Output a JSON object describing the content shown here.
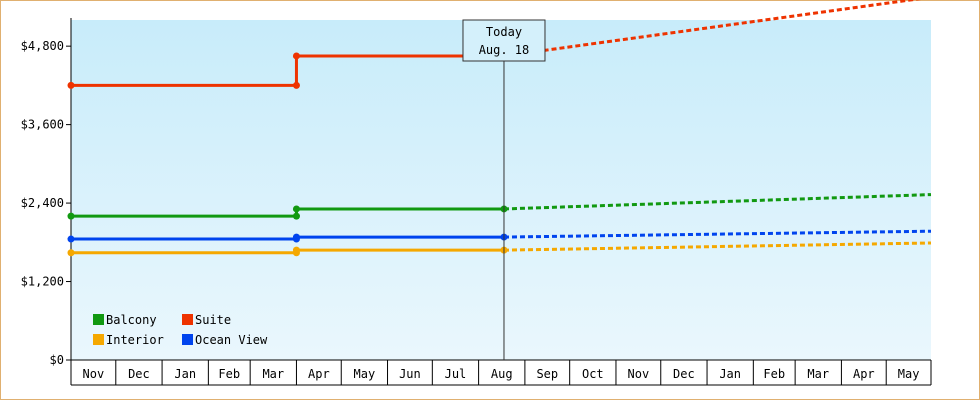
{
  "chart_data": {
    "type": "line",
    "title": "",
    "xlabel": "",
    "ylabel": "",
    "ylim": [
      0,
      5200
    ],
    "yticks": [
      0,
      1200,
      2400,
      3600,
      4800
    ],
    "ytick_labels": [
      "$0",
      "$1,200",
      "$2,400",
      "$3,600",
      "$4,800"
    ],
    "months": [
      "Nov",
      "Dec",
      "Jan",
      "Feb",
      "Mar",
      "Apr",
      "May",
      "Jun",
      "Jul",
      "Aug",
      "Sep",
      "Oct",
      "Nov",
      "Dec",
      "Jan",
      "Feb",
      "Mar",
      "Apr",
      "May"
    ],
    "x_start": "2017-11-01",
    "x_end": "2019-05-31",
    "today": {
      "date": "2018-08-18",
      "label_line1": "Today",
      "label_line2": "Aug. 18"
    },
    "legend_position": "bottom-left",
    "background": {
      "top": "#c8ecfa",
      "bottom": "#eaf7fd"
    },
    "series": [
      {
        "name": "Suite",
        "color": "#ee3300",
        "points": [
          {
            "date": "2017-11-01",
            "value": 4200
          },
          {
            "date": "2018-04-01",
            "value": 4200
          },
          {
            "date": "2018-04-01",
            "value": 4650
          },
          {
            "date": "2018-08-18",
            "value": 4650
          }
        ],
        "forecast": [
          {
            "date": "2018-08-18",
            "value": 4650
          },
          {
            "date": "2019-05-31",
            "value": 5550
          }
        ]
      },
      {
        "name": "Balcony",
        "color": "#119911",
        "points": [
          {
            "date": "2017-11-01",
            "value": 2200
          },
          {
            "date": "2018-04-01",
            "value": 2200
          },
          {
            "date": "2018-04-01",
            "value": 2310
          },
          {
            "date": "2018-08-18",
            "value": 2310
          }
        ],
        "forecast": [
          {
            "date": "2018-08-18",
            "value": 2310
          },
          {
            "date": "2019-05-31",
            "value": 2530
          }
        ]
      },
      {
        "name": "Ocean View",
        "color": "#0044ee",
        "points": [
          {
            "date": "2017-11-01",
            "value": 1850
          },
          {
            "date": "2018-04-01",
            "value": 1850
          },
          {
            "date": "2018-04-01",
            "value": 1880
          },
          {
            "date": "2018-08-18",
            "value": 1880
          }
        ],
        "forecast": [
          {
            "date": "2018-08-18",
            "value": 1880
          },
          {
            "date": "2019-05-31",
            "value": 1970
          }
        ]
      },
      {
        "name": "Interior",
        "color": "#f5a800",
        "points": [
          {
            "date": "2017-11-01",
            "value": 1640
          },
          {
            "date": "2018-04-01",
            "value": 1640
          },
          {
            "date": "2018-04-01",
            "value": 1680
          },
          {
            "date": "2018-08-18",
            "value": 1680
          }
        ],
        "forecast": [
          {
            "date": "2018-08-18",
            "value": 1680
          },
          {
            "date": "2019-05-31",
            "value": 1790
          }
        ]
      }
    ],
    "legend": [
      {
        "name": "Balcony",
        "color": "#119911"
      },
      {
        "name": "Suite",
        "color": "#ee3300"
      },
      {
        "name": "Interior",
        "color": "#f5a800"
      },
      {
        "name": "Ocean View",
        "color": "#0044ee"
      }
    ]
  }
}
